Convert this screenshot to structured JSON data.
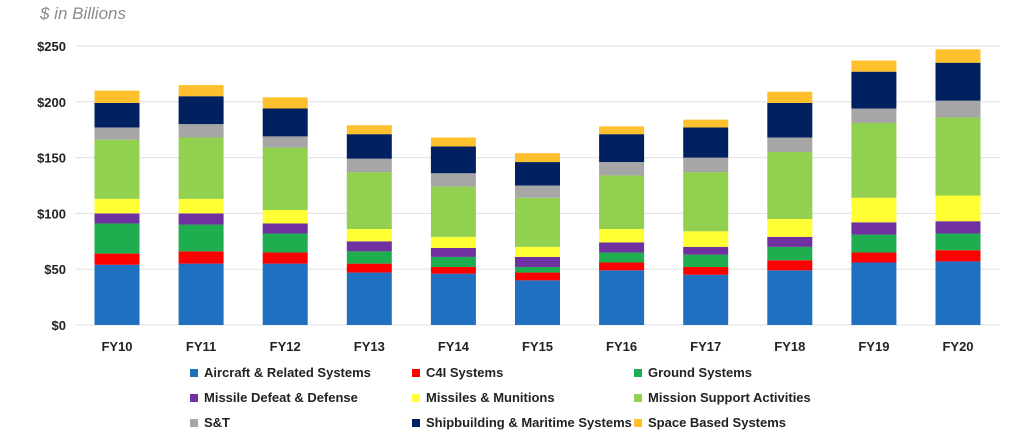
{
  "chart_data": {
    "type": "bar",
    "stacked": true,
    "title": "",
    "unit_label": "$ in Billions",
    "xlabel": "",
    "ylabel": "",
    "ylim": [
      0,
      250
    ],
    "yticks": [
      0,
      50,
      100,
      150,
      200,
      250
    ],
    "ytick_labels": [
      "$0",
      "$50",
      "$100",
      "$150",
      "$200",
      "$250"
    ],
    "grid": true,
    "legend_position": "bottom",
    "categories": [
      "FY10",
      "FY11",
      "FY12",
      "FY13",
      "FY14",
      "FY15",
      "FY16",
      "FY17",
      "FY18",
      "FY19",
      "FY20"
    ],
    "series": [
      {
        "name": "Aircraft & Related Systems",
        "color": "#1f70c1",
        "values": [
          54,
          55,
          55,
          47,
          46,
          40,
          49,
          45,
          49,
          56,
          57
        ]
      },
      {
        "name": "C4I Systems",
        "color": "#ff0000",
        "values": [
          10,
          11,
          10,
          8,
          6,
          7,
          7,
          7,
          9,
          9,
          10
        ]
      },
      {
        "name": "Ground Systems",
        "color": "#1fae4f",
        "values": [
          27,
          24,
          17,
          11,
          9,
          5,
          9,
          11,
          12,
          16,
          15
        ]
      },
      {
        "name": "Missile Defeat & Defense",
        "color": "#7030a0",
        "values": [
          9,
          10,
          9,
          9,
          8,
          9,
          9,
          7,
          9,
          11,
          11
        ]
      },
      {
        "name": "Missiles & Munitions",
        "color": "#ffff33",
        "values": [
          13,
          13,
          12,
          11,
          10,
          9,
          12,
          14,
          16,
          22,
          23
        ]
      },
      {
        "name": "Mission Support Activities",
        "color": "#92d050",
        "values": [
          53,
          55,
          56,
          51,
          45,
          44,
          48,
          53,
          60,
          67,
          70
        ]
      },
      {
        "name": "S&T",
        "color": "#a6a6a6",
        "values": [
          11,
          12,
          10,
          12,
          12,
          11,
          12,
          13,
          13,
          13,
          15
        ]
      },
      {
        "name": "Shipbuilding & Maritime Systems",
        "color": "#002060",
        "values": [
          22,
          25,
          25,
          22,
          24,
          21,
          25,
          27,
          31,
          33,
          34
        ]
      },
      {
        "name": "Space Based Systems",
        "color": "#ffc02e",
        "values": [
          11,
          10,
          10,
          8,
          8,
          8,
          7,
          7,
          10,
          10,
          12
        ]
      }
    ]
  }
}
